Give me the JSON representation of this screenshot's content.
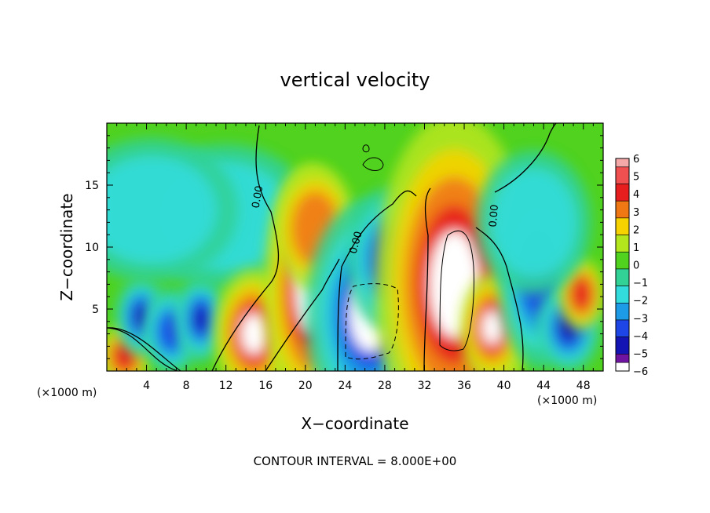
{
  "chart_data": {
    "type": "heatmap",
    "title": "vertical velocity",
    "xlabel": "X−coordinate",
    "ylabel": "Z−coordinate",
    "x_unit_label": "(×1000 m)",
    "xlim": [
      0,
      50
    ],
    "ylim": [
      0,
      20
    ],
    "x_ticks": [
      4,
      8,
      12,
      16,
      20,
      24,
      28,
      32,
      36,
      40,
      44,
      48
    ],
    "y_ticks": [
      5,
      10,
      15
    ],
    "x_tick_labels": [
      "4",
      "8",
      "12",
      "16",
      "20",
      "24",
      "28",
      "32",
      "36",
      "40",
      "44",
      "48"
    ],
    "y_tick_labels": [
      "5",
      "10",
      "15"
    ],
    "colorbar": {
      "levels": [
        6,
        5,
        4,
        3,
        2,
        1,
        0,
        -1,
        -2,
        -3,
        -4,
        -5,
        -6
      ],
      "labels": [
        "6",
        "5",
        "4",
        "3",
        "2",
        "1",
        "0",
        "−1",
        "−2",
        "−3",
        "−4",
        "−5",
        "−6"
      ],
      "colors": [
        "#f4a8a8",
        "#f05050",
        "#e61e1e",
        "#f07814",
        "#f5d200",
        "#b4e61e",
        "#50d21e",
        "#32d296",
        "#32dcdc",
        "#1e9be6",
        "#1e46e6",
        "#1414b4",
        "#6e14a0"
      ]
    },
    "contour_labels": [
      {
        "text": "0.00",
        "x": 15.5,
        "y": 14.0,
        "rotate": -80
      },
      {
        "text": "0.00",
        "x": 25.4,
        "y": 10.3,
        "rotate": -75
      },
      {
        "text": "0.00",
        "x": 39.3,
        "y": 12.5,
        "rotate": -85
      }
    ],
    "features": [
      {
        "x": 1.8,
        "z": 1.2,
        "rx": 1.8,
        "rz": 1.8,
        "value": 4
      },
      {
        "x": 3.5,
        "z": 4.4,
        "rx": 1.8,
        "rz": 2.2,
        "value": -5
      },
      {
        "x": 6.5,
        "z": 3.2,
        "rx": 2.0,
        "rz": 2.4,
        "value": -4
      },
      {
        "x": 9.5,
        "z": 4.2,
        "rx": 1.8,
        "rz": 2.4,
        "value": -5
      },
      {
        "x": 12.0,
        "z": 12.5,
        "rx": 6.0,
        "rz": 4.0,
        "value": -2
      },
      {
        "x": 4.5,
        "z": 13.0,
        "rx": 6.0,
        "rz": 4.0,
        "value": -2
      },
      {
        "x": 14.8,
        "z": 3.0,
        "rx": 2.8,
        "rz": 3.6,
        "value": 6
      },
      {
        "x": 20.5,
        "z": 6.5,
        "rx": 3.2,
        "rz": 7.0,
        "value": 6
      },
      {
        "x": 21.0,
        "z": 11.5,
        "rx": 2.8,
        "rz": 3.5,
        "value": 3
      },
      {
        "x": 26.5,
        "z": 4.5,
        "rx": 4.5,
        "rz": 6.5,
        "value": -6
      },
      {
        "x": 28.5,
        "z": 9.0,
        "rx": 3.0,
        "rz": 4.0,
        "value": -4
      },
      {
        "x": 35.0,
        "z": 7.0,
        "rx": 5.5,
        "rz": 9.5,
        "value": 6
      },
      {
        "x": 38.8,
        "z": 3.5,
        "rx": 2.2,
        "rz": 3.0,
        "value": 6
      },
      {
        "x": 43.5,
        "z": 7.5,
        "rx": 2.8,
        "rz": 5.0,
        "value": -4
      },
      {
        "x": 46.5,
        "z": 3.5,
        "rx": 2.2,
        "rz": 2.5,
        "value": -5
      },
      {
        "x": 47.8,
        "z": 6.2,
        "rx": 1.6,
        "rz": 2.0,
        "value": 4
      },
      {
        "x": 43.0,
        "z": 12.0,
        "rx": 4.0,
        "rz": 4.0,
        "value": -2
      }
    ]
  },
  "footer": {
    "contour_interval": "CONTOUR INTERVAL = 8.000E+00"
  }
}
